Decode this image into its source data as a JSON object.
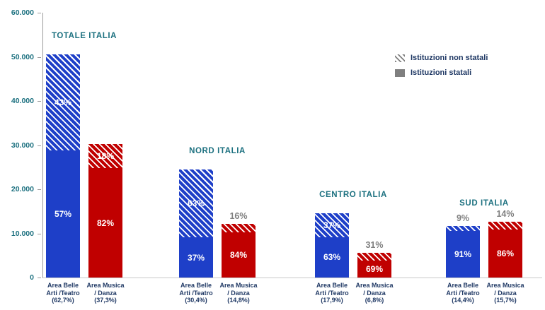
{
  "chart_data": {
    "type": "bar",
    "stacked": true,
    "title": "",
    "xlabel": "",
    "ylabel": "",
    "ylim": [
      0,
      60000
    ],
    "grid": false,
    "legend_position": "top-right",
    "yticks": [
      {
        "value": 60000,
        "label": "60.000"
      },
      {
        "value": 50000,
        "label": "50.000"
      },
      {
        "value": 40000,
        "label": "40.000"
      },
      {
        "value": 30000,
        "label": "30.000"
      },
      {
        "value": 20000,
        "label": "20.000"
      },
      {
        "value": 10000,
        "label": "10.000"
      },
      {
        "value": 0,
        "label": "0"
      }
    ],
    "legend": [
      {
        "label": "Istituzioni non statali",
        "style": "hatched"
      },
      {
        "label": "Istituzioni statali",
        "style": "solid"
      }
    ],
    "colors": {
      "blue": "#1e3fc8",
      "red": "#c00000",
      "region_title": "#1d7180",
      "axis_text": "#1d7180",
      "xlabel_text": "#1f3864",
      "outside_label": "#808080",
      "legend_text": "#1f3864",
      "legend_swatch": "#7f7f7f",
      "axis_line": "#9b9b9b"
    },
    "groups": [
      {
        "title": "TOTALE ITALIA",
        "bars": [
          {
            "color_key": "blue",
            "total": 50500,
            "segments": {
              "statali": {
                "pct": 57,
                "label": "57%"
              },
              "non_statali": {
                "pct": 43,
                "label": "43%",
                "outside": false
              }
            },
            "xlabel_lines": [
              "Area Belle",
              "Arti /Teatro",
              "(62,7%)"
            ]
          },
          {
            "color_key": "red",
            "total": 30200,
            "segments": {
              "statali": {
                "pct": 82,
                "label": "82%"
              },
              "non_statali": {
                "pct": 18,
                "label": "18%",
                "outside": false
              }
            },
            "xlabel_lines": [
              "Area Musica",
              "/ Danza",
              "(37,3%)"
            ]
          }
        ]
      },
      {
        "title": "NORD ITALIA",
        "bars": [
          {
            "color_key": "blue",
            "total": 24500,
            "segments": {
              "statali": {
                "pct": 37,
                "label": "37%"
              },
              "non_statali": {
                "pct": 63,
                "label": "63%",
                "outside": false
              }
            },
            "xlabel_lines": [
              "Area Belle",
              "Arti /Teatro",
              "(30,4%)"
            ]
          },
          {
            "color_key": "red",
            "total": 12100,
            "segments": {
              "statali": {
                "pct": 84,
                "label": "84%"
              },
              "non_statali": {
                "pct": 16,
                "label": "16%",
                "outside": true
              }
            },
            "xlabel_lines": [
              "Area Musica",
              "/ Danza",
              "(14,8%)"
            ]
          }
        ]
      },
      {
        "title": "CENTRO ITALIA",
        "bars": [
          {
            "color_key": "blue",
            "total": 14500,
            "segments": {
              "statali": {
                "pct": 63,
                "label": "63%"
              },
              "non_statali": {
                "pct": 37,
                "label": "37%",
                "outside": false
              }
            },
            "xlabel_lines": [
              "Area Belle",
              "Arti /Teatro",
              "(17,9%)"
            ]
          },
          {
            "color_key": "red",
            "total": 5600,
            "segments": {
              "statali": {
                "pct": 69,
                "label": "69%"
              },
              "non_statali": {
                "pct": 31,
                "label": "31%",
                "outside": true
              }
            },
            "xlabel_lines": [
              "Area Musica",
              "/ Danza",
              "(6,8%)"
            ]
          }
        ]
      },
      {
        "title": "SUD ITALIA",
        "bars": [
          {
            "color_key": "blue",
            "total": 11700,
            "segments": {
              "statali": {
                "pct": 91,
                "label": "91%"
              },
              "non_statali": {
                "pct": 9,
                "label": "9%",
                "outside": true
              }
            },
            "xlabel_lines": [
              "Area Belle",
              "Arti /Teatro",
              "(14,4%)"
            ]
          },
          {
            "color_key": "red",
            "total": 12700,
            "segments": {
              "statali": {
                "pct": 86,
                "label": "86%"
              },
              "non_statali": {
                "pct": 14,
                "label": "14%",
                "outside": true
              }
            },
            "xlabel_lines": [
              "Area Musica",
              "/ Danza",
              "(15,7%)"
            ]
          }
        ]
      }
    ]
  }
}
